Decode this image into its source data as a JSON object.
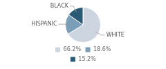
{
  "chart_data": {
    "type": "pie",
    "categories": [
      "WHITE",
      "HISPANIC",
      "BLACK"
    ],
    "values": [
      66.2,
      18.6,
      15.2
    ],
    "value_labels": [
      "66.2%",
      "18.6%",
      "15.2%"
    ],
    "colors": [
      "#cdd6e0",
      "#7a9db8",
      "#2b5a74"
    ],
    "legend": "bottom"
  }
}
